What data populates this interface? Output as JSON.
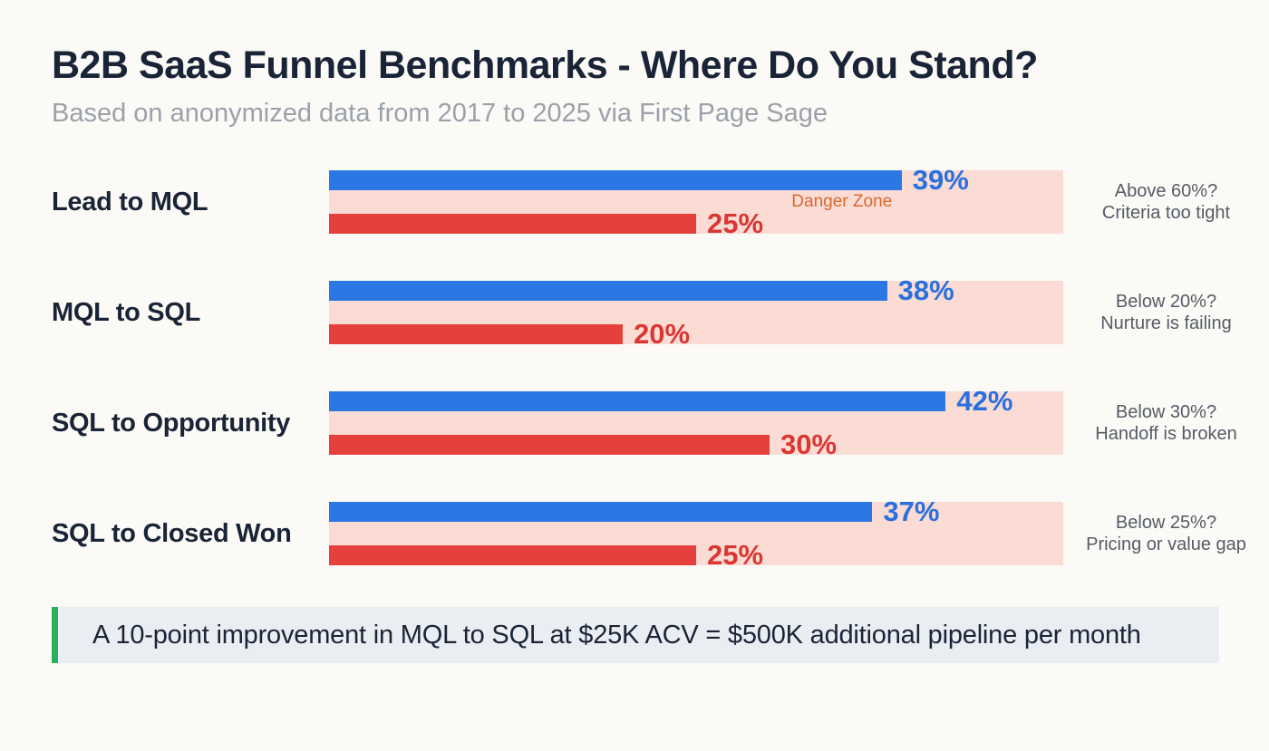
{
  "page": {
    "title": "B2B SaaS Funnel Benchmarks - Where Do You Stand?",
    "subtitle": "Based on anonymized data from 2017 to 2025 via First Page Sage"
  },
  "colors": {
    "background": "#fbfaf6",
    "title_text": "#1a2437",
    "subtitle_text": "#9ba1aa",
    "bar_blue": "#2b77e4",
    "bar_blue_text": "#2a70dd",
    "bar_red": "#e5403c",
    "bar_red_text": "#da3733",
    "danger_zone_bg": "#fadcd5",
    "danger_zone_text": "#d8692f",
    "annotation_text": "#555c66",
    "callout_bg": "#eaedf1",
    "callout_border": "#26b258",
    "callout_text": "#1a2437"
  },
  "axis": {
    "max": 50
  },
  "rows": [
    {
      "label": "Lead to MQL",
      "blue_value": 39,
      "blue_label": "39%",
      "red_value": 25,
      "red_label": "25%",
      "zone_label": "Danger Zone",
      "annotation_line1": "Above 60%?",
      "annotation_line2": "Criteria too tight"
    },
    {
      "label": "MQL to SQL",
      "blue_value": 38,
      "blue_label": "38%",
      "red_value": 20,
      "red_label": "20%",
      "annotation_line1": "Below 20%?",
      "annotation_line2": "Nurture is failing"
    },
    {
      "label": "SQL to Opportunity",
      "blue_value": 42,
      "blue_label": "42%",
      "red_value": 30,
      "red_label": "30%",
      "annotation_line1": "Below 30%?",
      "annotation_line2": "Handoff is broken"
    },
    {
      "label": "SQL to Closed Won",
      "blue_value": 37,
      "blue_label": "37%",
      "red_value": 25,
      "red_label": "25%",
      "annotation_line1": "Below 25%?",
      "annotation_line2": "Pricing or value gap"
    }
  ],
  "callout": {
    "text": "A 10-point improvement in MQL to SQL at $25K ACV = $500K additional pipeline per month"
  },
  "chart_data": {
    "type": "bar",
    "orientation": "horizontal",
    "title": "B2B SaaS Funnel Benchmarks - Where Do You Stand?",
    "subtitle": "Based on anonymized data from 2017 to 2025 via First Page Sage",
    "categories": [
      "Lead to MQL",
      "MQL to SQL",
      "SQL to Opportunity",
      "SQL to Closed Won"
    ],
    "series": [
      {
        "name": "blue",
        "color": "#2b77e4",
        "values": [
          39,
          38,
          42,
          37
        ]
      },
      {
        "name": "red",
        "color": "#e5403c",
        "values": [
          25,
          20,
          30,
          25
        ]
      }
    ],
    "value_suffix": "%",
    "xlim": [
      0,
      50
    ],
    "grid": false,
    "legend": false,
    "background_band": {
      "label": "Danger Zone",
      "color": "#fadcd5",
      "spans_full_track": true
    },
    "annotations": [
      "Above 60%? Criteria too tight",
      "Below 20%? Nurture is failing",
      "Below 30%? Handoff is broken",
      "Below 25%? Pricing or value gap"
    ],
    "footnote": "A 10-point improvement in MQL to SQL at $25K ACV = $500K additional pipeline per month"
  }
}
